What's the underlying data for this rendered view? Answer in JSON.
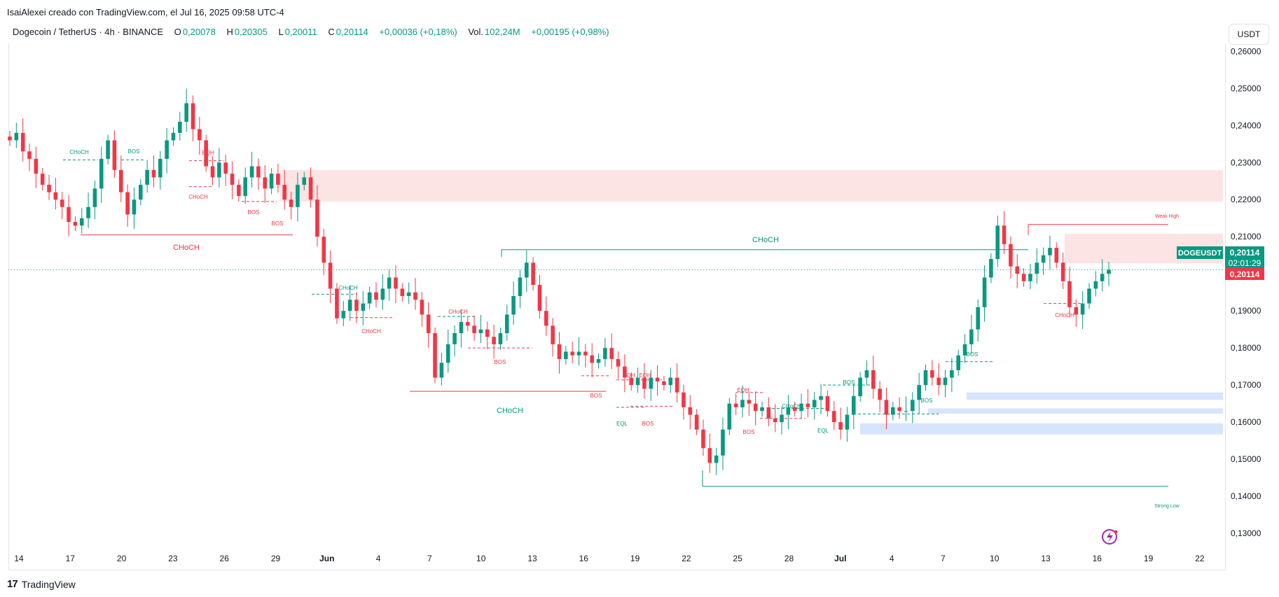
{
  "header": {
    "creator_line": "IsaiAlexei creado con TradingView.com, el Jul 16, 2025 09:58 UTC-4",
    "currency_button": "USDT"
  },
  "legend": {
    "symbol": "Dogecoin / TetherUS · 4h · BINANCE",
    "o_label": "O",
    "o_value": "0,20078",
    "h_label": "H",
    "h_value": "0,20305",
    "l_label": "L",
    "l_value": "0,20011",
    "c_label": "C",
    "c_value": "0,20114",
    "change": "+0,00036 (+0,18%)",
    "vol_label": "Vol.",
    "vol_value": "102,24M",
    "vol_change": "+0,00195 (+0,98%)"
  },
  "price_tags": {
    "symbol_tag": "DOGEUSDT",
    "price": "0,20114",
    "countdown": "02:01:29",
    "last_price": "0,20114"
  },
  "footer": {
    "brand": "TradingView",
    "logo": "17"
  },
  "colors": {
    "up": "#089981",
    "down": "#f23645",
    "supply_zone": "#fce4e4",
    "demand_zone": "#d6e4fc"
  },
  "chart_data": {
    "type": "candlestick",
    "y_ticks": [
      "0,26000",
      "0,25000",
      "0,24000",
      "0,23000",
      "0,22000",
      "0,21000",
      "0,20000",
      "0,19000",
      "0,18000",
      "0,17000",
      "0,16000",
      "0,15000",
      "0,14000",
      "0,13000"
    ],
    "y_values": [
      0.26,
      0.25,
      0.24,
      0.23,
      0.22,
      0.21,
      0.2,
      0.19,
      0.18,
      0.17,
      0.16,
      0.15,
      0.14,
      0.13
    ],
    "x_ticks": [
      "14",
      "17",
      "20",
      "23",
      "26",
      "29",
      "Jun",
      "4",
      "7",
      "10",
      "13",
      "16",
      "19",
      "22",
      "25",
      "28",
      "Jul",
      "4",
      "7",
      "10",
      "13",
      "16",
      "19",
      "22"
    ],
    "ylim": [
      0.127,
      0.261
    ],
    "annotations": [
      {
        "text": "CHoCH",
        "color": "#089981"
      },
      {
        "text": "BOS",
        "color": "#089981"
      },
      {
        "text": "EQH",
        "color": "#f23645"
      },
      {
        "text": "CHoCH",
        "color": "#f23645"
      },
      {
        "text": "BOS",
        "color": "#f23645"
      },
      {
        "text": "BOS",
        "color": "#f23645"
      },
      {
        "text": "CHoCH",
        "color": "#f23645"
      },
      {
        "text": "CHoCH",
        "color": "#089981"
      },
      {
        "text": "CHoCH",
        "color": "#f23645"
      },
      {
        "text": "CHoCH",
        "color": "#089981"
      },
      {
        "text": "CHoCH",
        "color": "#f23645"
      },
      {
        "text": "BOS",
        "color": "#f23645"
      },
      {
        "text": "CHoCH",
        "color": "#089981"
      },
      {
        "text": "EQH",
        "color": "#f23645"
      },
      {
        "text": "EQH",
        "color": "#f23645"
      },
      {
        "text": "BOS",
        "color": "#f23645"
      },
      {
        "text": "EQL",
        "color": "#089981"
      },
      {
        "text": "BOS",
        "color": "#f23645"
      },
      {
        "text": "EQH",
        "color": "#f23645"
      },
      {
        "text": "BOS",
        "color": "#f23645"
      },
      {
        "text": "CHoCH",
        "color": "#089981"
      },
      {
        "text": "EQL",
        "color": "#089981"
      },
      {
        "text": "BOS",
        "color": "#089981"
      },
      {
        "text": "BOS",
        "color": "#089981"
      },
      {
        "text": "BOS",
        "color": "#089981"
      },
      {
        "text": "Weak High",
        "color": "#f23645"
      },
      {
        "text": "CHoCH",
        "color": "#f23645"
      },
      {
        "text": "Strong Low",
        "color": "#089981"
      }
    ],
    "zones": [
      {
        "kind": "supply",
        "top": 0.228,
        "bottom": 0.2195
      },
      {
        "kind": "supply",
        "top": 0.2108,
        "bottom": 0.2028
      },
      {
        "kind": "demand",
        "top": 0.168,
        "bottom": 0.166
      },
      {
        "kind": "demand",
        "top": 0.1637,
        "bottom": 0.1623
      },
      {
        "kind": "demand",
        "top": 0.1597,
        "bottom": 0.1567
      }
    ],
    "closes": [
      0.236,
      0.238,
      0.233,
      0.231,
      0.227,
      0.224,
      0.222,
      0.22,
      0.218,
      0.214,
      0.213,
      0.215,
      0.218,
      0.223,
      0.231,
      0.236,
      0.228,
      0.222,
      0.216,
      0.22,
      0.224,
      0.228,
      0.226,
      0.231,
      0.236,
      0.238,
      0.241,
      0.246,
      0.239,
      0.236,
      0.229,
      0.226,
      0.23,
      0.227,
      0.224,
      0.221,
      0.226,
      0.229,
      0.226,
      0.223,
      0.227,
      0.224,
      0.22,
      0.218,
      0.224,
      0.226,
      0.22,
      0.21,
      0.203,
      0.196,
      0.188,
      0.19,
      0.193,
      0.19,
      0.192,
      0.195,
      0.193,
      0.196,
      0.199,
      0.196,
      0.194,
      0.195,
      0.193,
      0.189,
      0.184,
      0.172,
      0.176,
      0.181,
      0.184,
      0.187,
      0.186,
      0.184,
      0.185,
      0.183,
      0.181,
      0.184,
      0.189,
      0.194,
      0.199,
      0.203,
      0.197,
      0.19,
      0.186,
      0.181,
      0.177,
      0.179,
      0.178,
      0.179,
      0.178,
      0.176,
      0.177,
      0.18,
      0.177,
      0.175,
      0.172,
      0.17,
      0.172,
      0.169,
      0.172,
      0.171,
      0.17,
      0.172,
      0.168,
      0.164,
      0.162,
      0.158,
      0.153,
      0.149,
      0.151,
      0.158,
      0.165,
      0.164,
      0.166,
      0.165,
      0.163,
      0.164,
      0.161,
      0.16,
      0.162,
      0.164,
      0.163,
      0.165,
      0.164,
      0.166,
      0.167,
      0.163,
      0.16,
      0.158,
      0.162,
      0.167,
      0.172,
      0.174,
      0.169,
      0.166,
      0.162,
      0.164,
      0.163,
      0.163,
      0.166,
      0.17,
      0.174,
      0.172,
      0.17,
      0.172,
      0.174,
      0.178,
      0.181,
      0.185,
      0.191,
      0.199,
      0.204,
      0.213,
      0.208,
      0.202,
      0.2,
      0.198,
      0.2,
      0.203,
      0.205,
      0.207,
      0.203,
      0.198,
      0.191,
      0.189,
      0.192,
      0.196,
      0.198,
      0.2,
      0.2011
    ]
  }
}
